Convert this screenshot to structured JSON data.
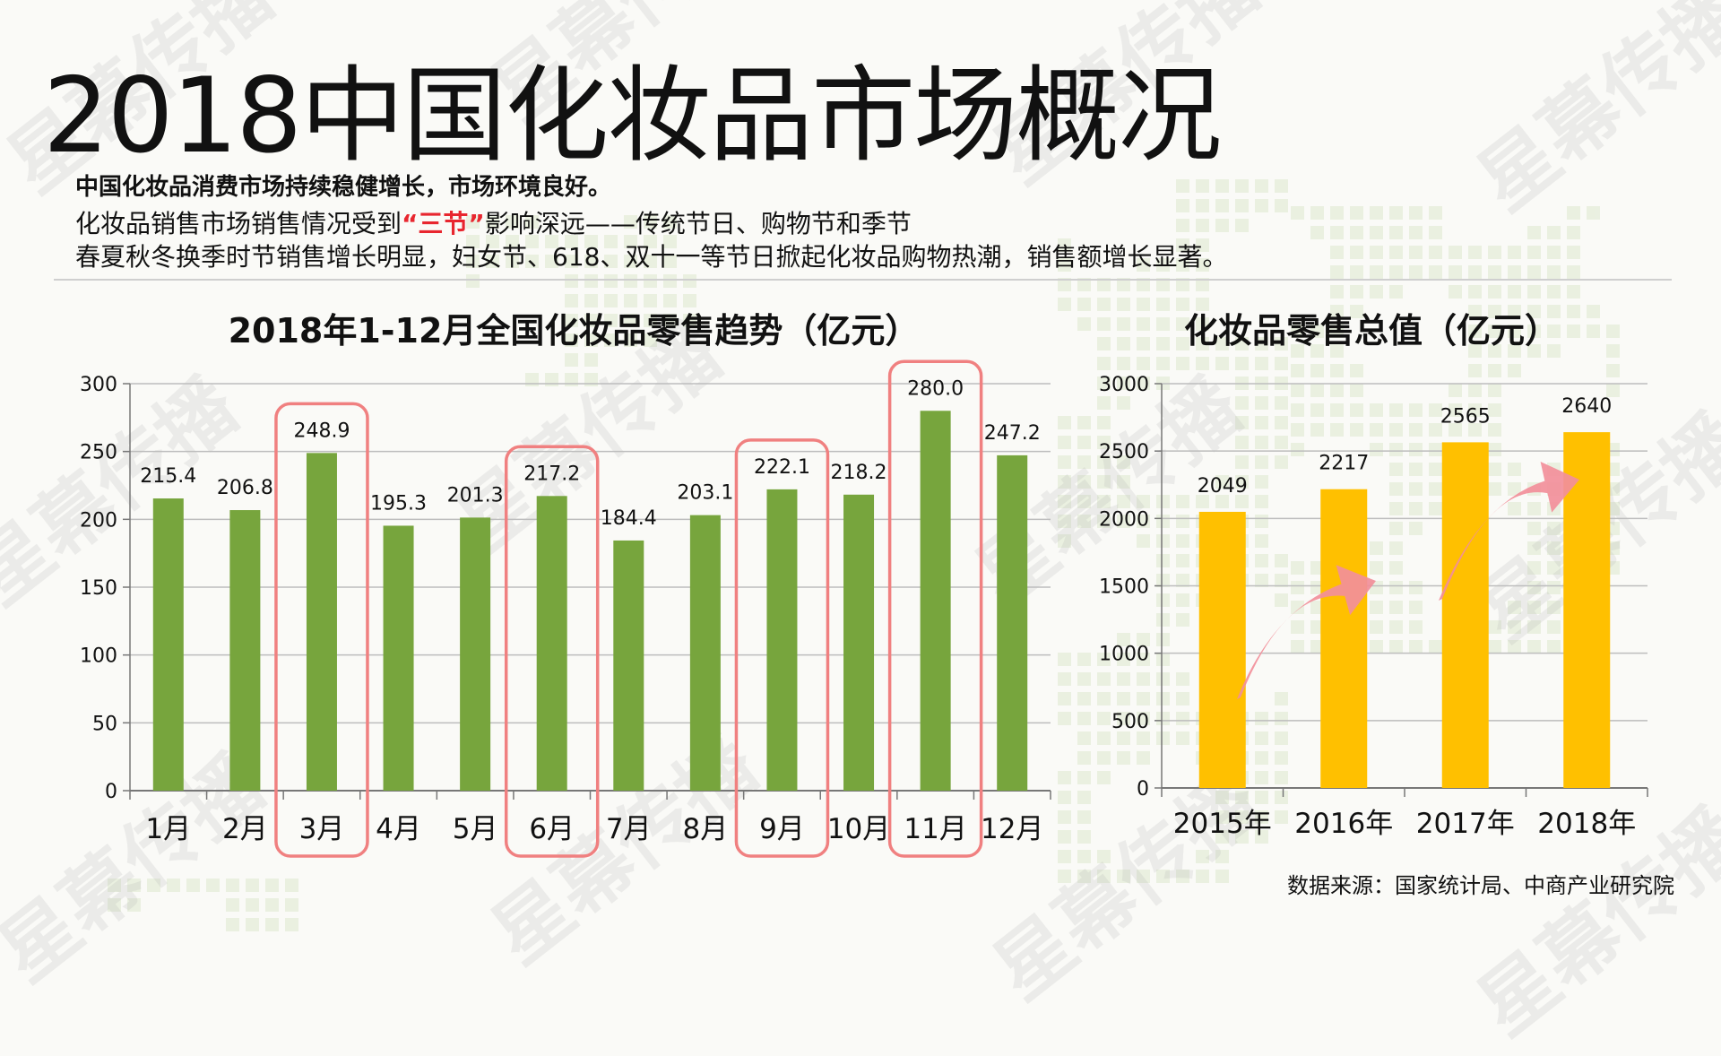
{
  "title": "2018中国化妆品市场概况",
  "watermark": [
    "星幕传播",
    "星幕传播",
    "星幕传播",
    "星幕传播",
    "星幕传播",
    "星幕传播",
    "星幕传播",
    "星幕传播",
    "星幕传播",
    "星幕传播",
    "星幕传播",
    "星幕传播"
  ],
  "subtitle": {
    "line1": "中国化妆品消费市场持续稳健增长，市场环境良好。",
    "line2_before": "化妆品销售市场销售情况受到",
    "line2_highlight": "“三节”",
    "line2_after": "影响深远——传统节日、购物节和季节",
    "line3": "春夏秋冬换季时节销售增长明显，妇女节、618、双十一等节日掀起化妆品购物热潮，销售额增长显著。"
  },
  "source": "数据来源：国家统计局、中商产业研究院",
  "colors": {
    "monthly_bar": "#77a53d",
    "annual_bar": "#ffc000",
    "highlight_box": "#f08080",
    "arrow": "#f28f9a",
    "accent_red": "#e8262f"
  },
  "chart_data": [
    {
      "type": "bar",
      "title": "2018年1-12月全国化妆品零售趋势（亿元）",
      "categories": [
        "1月",
        "2月",
        "3月",
        "4月",
        "5月",
        "6月",
        "7月",
        "8月",
        "9月",
        "10月",
        "11月",
        "12月"
      ],
      "values": [
        215.4,
        206.8,
        248.9,
        195.3,
        201.3,
        217.2,
        184.4,
        203.1,
        222.1,
        218.2,
        280.0,
        247.2
      ],
      "value_labels": [
        "215.4",
        "206.8",
        "248.9",
        "195.3",
        "201.3",
        "217.2",
        "184.4",
        "203.1",
        "222.1",
        "218.2",
        "280.0",
        "247.2"
      ],
      "highlighted": [
        "3月",
        "6月",
        "9月",
        "11月"
      ],
      "ylim": [
        0,
        300
      ],
      "yticks": [
        0,
        50,
        100,
        150,
        200,
        250,
        300
      ],
      "grid": true
    },
    {
      "type": "bar",
      "title": "化妆品零售总值（亿元）",
      "categories": [
        "2015年",
        "2016年",
        "2017年",
        "2018年"
      ],
      "values": [
        2049,
        2217,
        2565,
        2640
      ],
      "ylim": [
        0,
        3000
      ],
      "yticks": [
        0,
        500,
        1000,
        1500,
        2000,
        2500,
        3000
      ],
      "grid": true
    }
  ]
}
